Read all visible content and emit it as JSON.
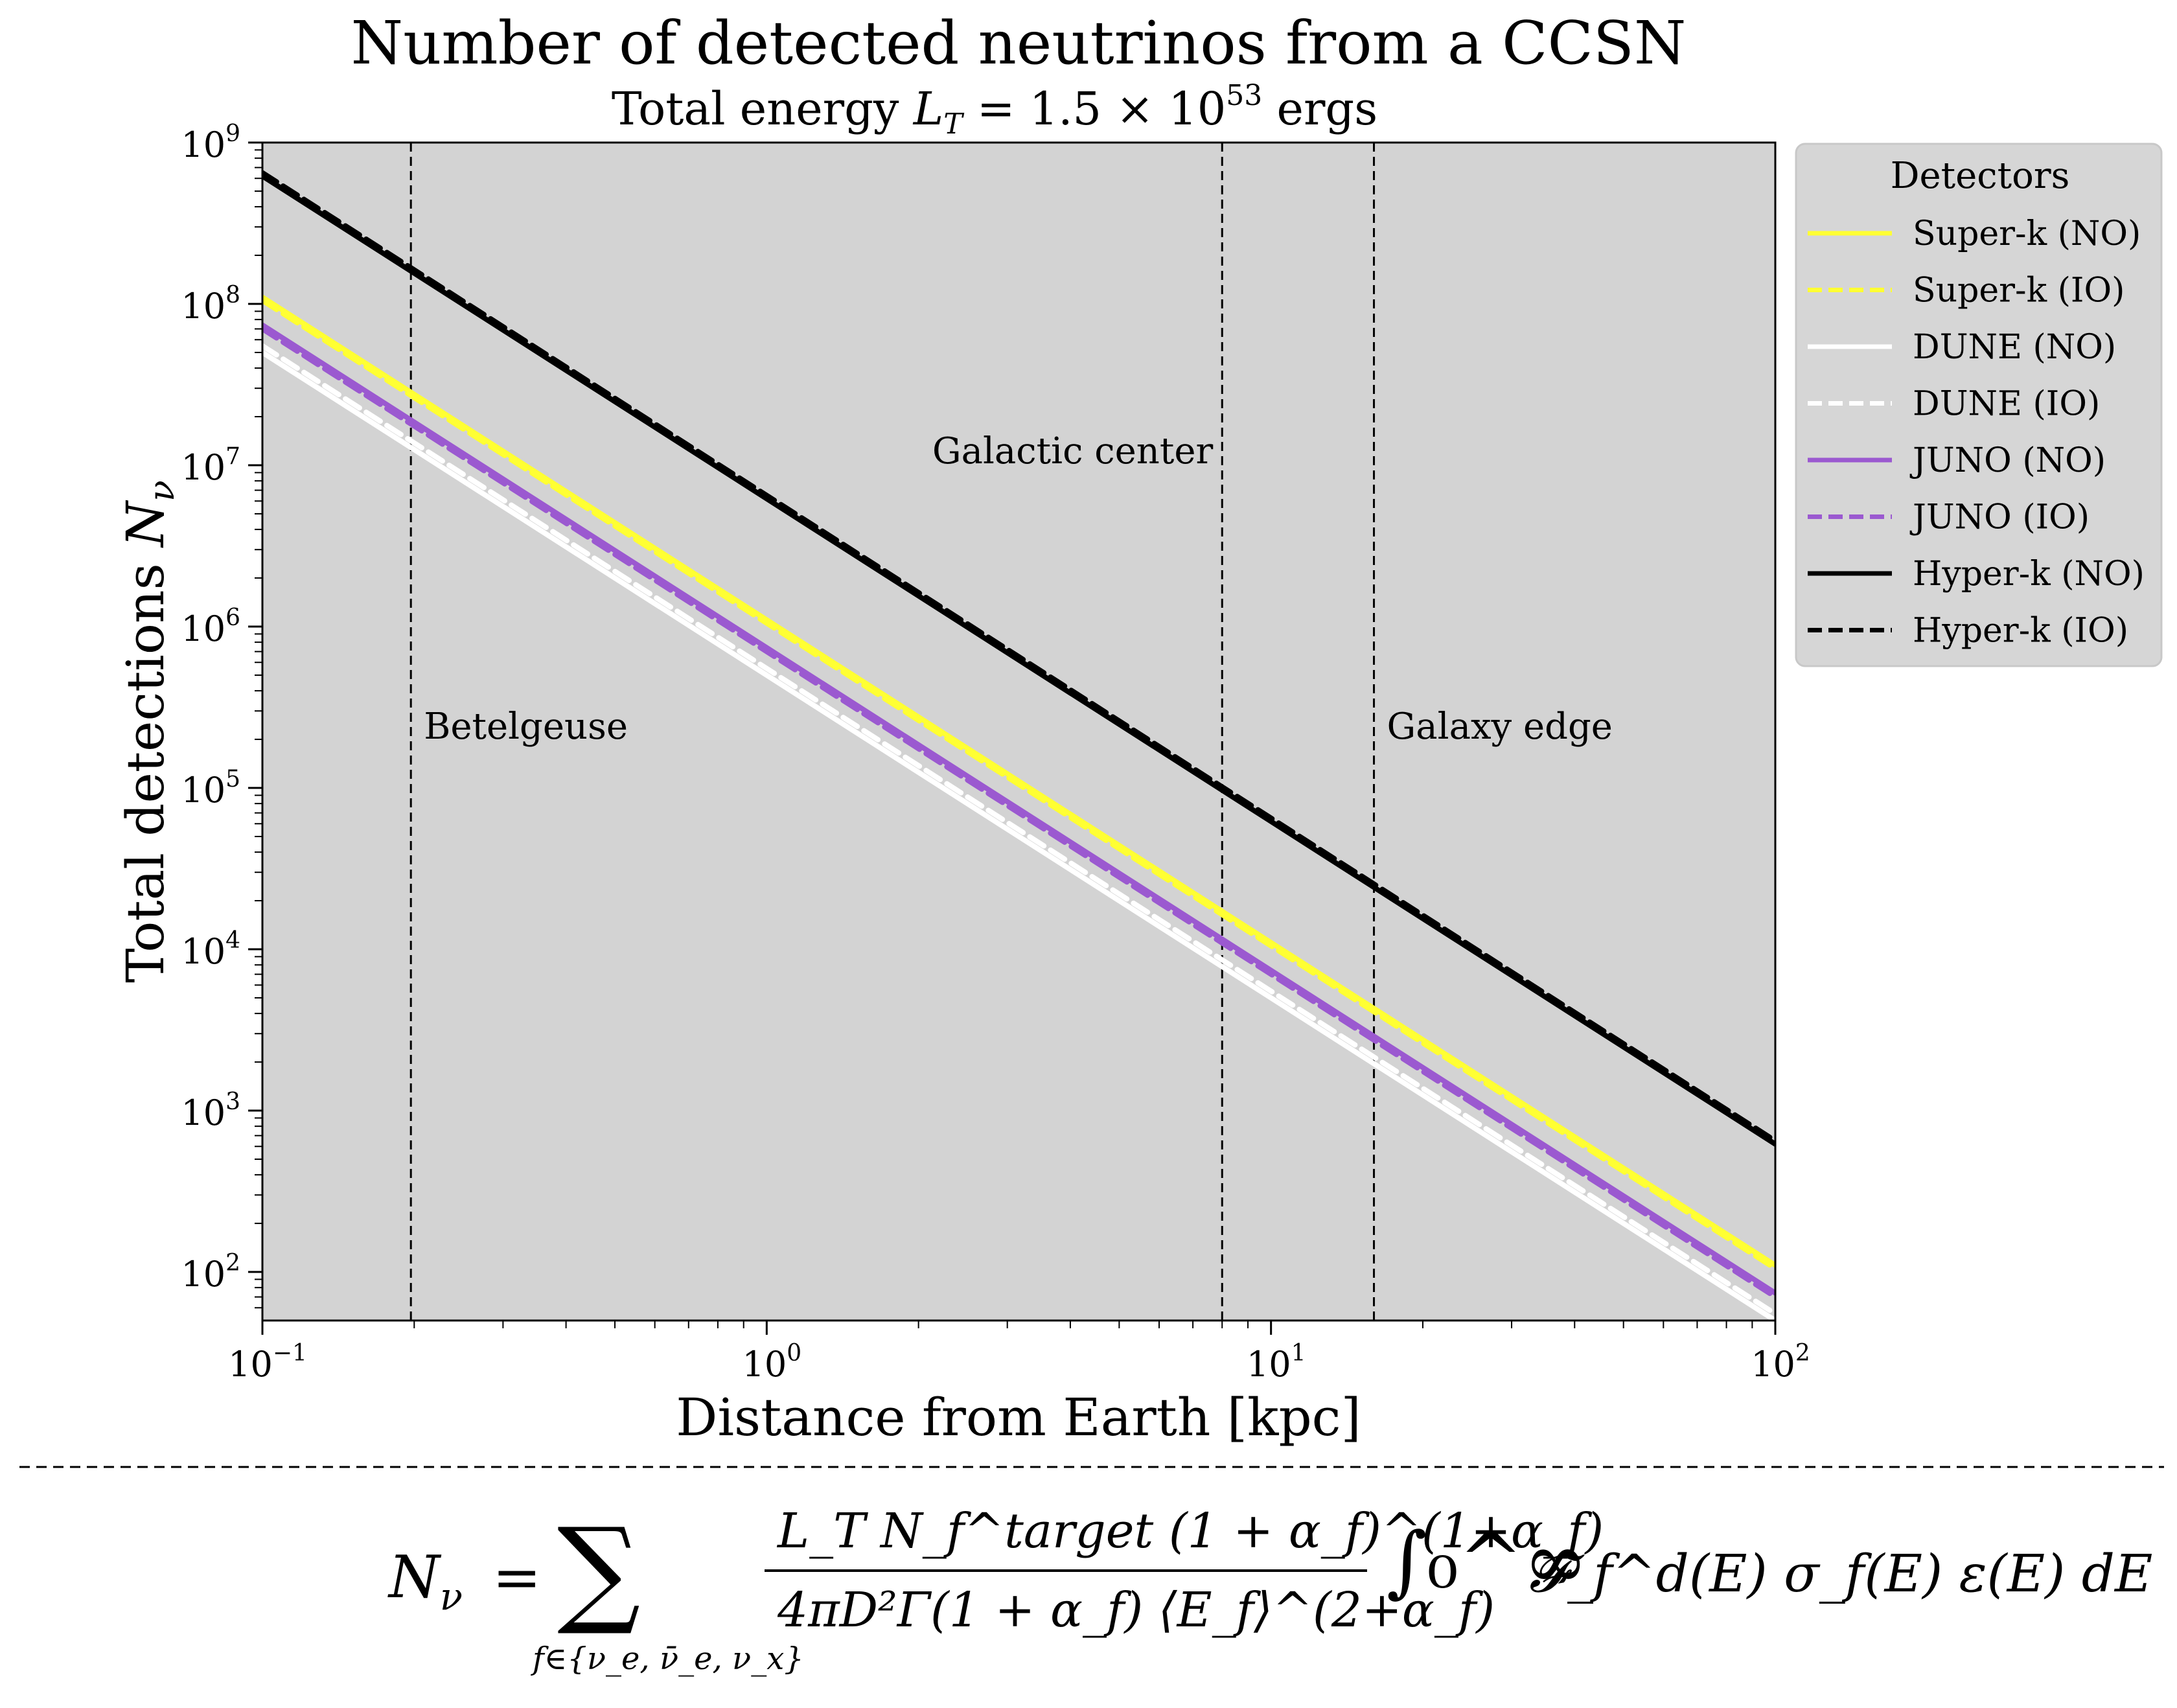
{
  "chart_data": {
    "type": "line",
    "title": "Number of detected neutrinos from a CCSN",
    "subtitle": "Total energy L_T = 1.5 × 10^53 ergs",
    "subtitle_parts": {
      "prefix": "Total energy ",
      "symbol": "L",
      "symbol_sub": "T",
      "rel": " = 1.5 × 10",
      "exp": "53",
      "suffix": " ergs"
    },
    "xlabel": "Distance from Earth [kpc]",
    "ylabel": "Total detections N_ν",
    "ylabel_parts": {
      "text": "Total detections ",
      "symbol": "N",
      "symbol_sub": "ν"
    },
    "xscale": "log",
    "yscale": "log",
    "xlim": [
      0.1,
      100
    ],
    "ylim": [
      50,
      1000000000
    ],
    "x_ticks": [
      {
        "value": 0.1,
        "base": "10",
        "exp": "−1"
      },
      {
        "value": 1,
        "base": "10",
        "exp": "0"
      },
      {
        "value": 10,
        "base": "10",
        "exp": "1"
      },
      {
        "value": 100,
        "base": "10",
        "exp": "2"
      }
    ],
    "y_ticks": [
      {
        "value": 100,
        "base": "10",
        "exp": "2"
      },
      {
        "value": 1000,
        "base": "10",
        "exp": "3"
      },
      {
        "value": 10000,
        "base": "10",
        "exp": "4"
      },
      {
        "value": 100000,
        "base": "10",
        "exp": "5"
      },
      {
        "value": 1000000,
        "base": "10",
        "exp": "6"
      },
      {
        "value": 10000000,
        "base": "10",
        "exp": "7"
      },
      {
        "value": 100000000,
        "base": "10",
        "exp": "8"
      },
      {
        "value": 1000000000,
        "base": "10",
        "exp": "9"
      }
    ],
    "plot_background": "#d3d3d3",
    "grid": false,
    "legend": {
      "title": "Detectors",
      "position": "outside upper right"
    },
    "series": [
      {
        "name": "Super-k (NO)",
        "color": "#ffff33",
        "dash": "solid",
        "x": [
          0.1,
          100
        ],
        "y": [
          110000000,
          110
        ]
      },
      {
        "name": "Super-k (IO)",
        "color": "#ffff33",
        "dash": "dashed",
        "x": [
          0.1,
          100
        ],
        "y": [
          105000000,
          105
        ]
      },
      {
        "name": "DUNE (NO)",
        "color": "#ffffff",
        "dash": "solid",
        "x": [
          0.1,
          100
        ],
        "y": [
          50000000,
          50
        ]
      },
      {
        "name": "DUNE (IO)",
        "color": "#ffffff",
        "dash": "dashed",
        "x": [
          0.1,
          100
        ],
        "y": [
          55000000,
          55
        ]
      },
      {
        "name": "JUNO (NO)",
        "color": "#9b59d0",
        "dash": "solid",
        "x": [
          0.1,
          100
        ],
        "y": [
          74000000,
          74
        ]
      },
      {
        "name": "JUNO (IO)",
        "color": "#9b59d0",
        "dash": "dashed",
        "x": [
          0.1,
          100
        ],
        "y": [
          70000000,
          70
        ]
      },
      {
        "name": "Hyper-k (NO)",
        "color": "#000000",
        "dash": "solid",
        "x": [
          0.1,
          100
        ],
        "y": [
          620000000,
          620
        ]
      },
      {
        "name": "Hyper-k (IO)",
        "color": "#000000",
        "dash": "dashed",
        "x": [
          0.1,
          100
        ],
        "y": [
          650000000,
          650
        ]
      }
    ],
    "vlines": [
      {
        "x": 0.197,
        "label": "Betelgeuse",
        "label_pos": "right"
      },
      {
        "x": 8.0,
        "label": "Galactic center",
        "label_pos": "left"
      },
      {
        "x": 16.0,
        "label": "Galaxy edge",
        "label_pos": "right"
      }
    ]
  },
  "formula": {
    "lhs": "N",
    "lhs_sub": "ν",
    "equals": "=",
    "sum": "∑",
    "sum_sub": "f∈{ν_e, ν̄_e, ν_x}",
    "numerator": "L_T N_f^target (1 + α_f)^(1+α_f)",
    "denominator": "4πD²Γ(1 + α_f) ⟨E_f⟩^(2+α_f)",
    "integral": "∫₀^∞",
    "integrand": "𝓕_f^d(E) σ_f(E) ε(E) dE"
  }
}
